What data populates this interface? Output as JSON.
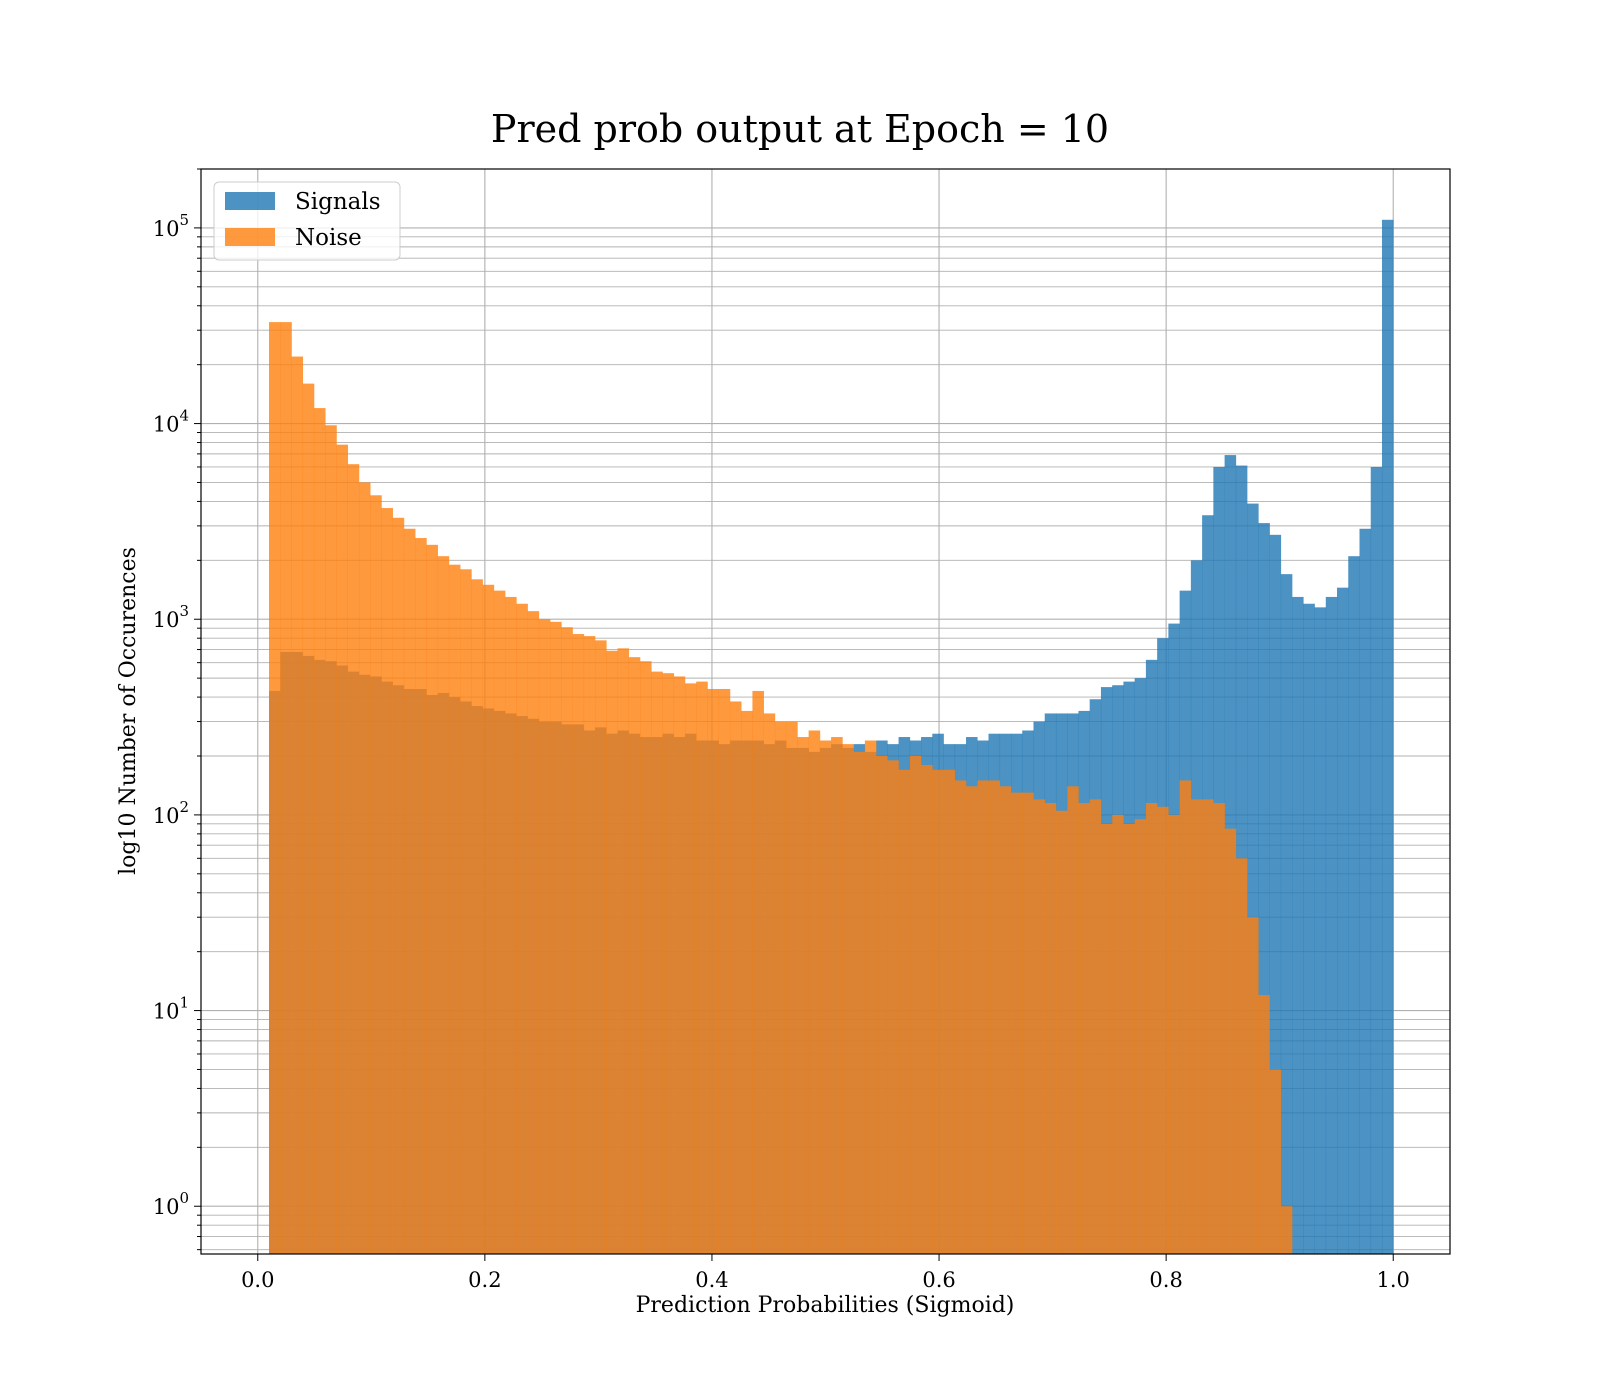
{
  "chart_data": {
    "type": "bar",
    "title": "Pred prob output at Epoch = 10",
    "xlabel": "Prediction Probabilities (Sigmoid)",
    "ylabel": "log10 Number of Occurences",
    "xlim": [
      -0.05,
      1.05
    ],
    "ylim": [
      0.57,
      200000
    ],
    "yscale": "log",
    "grid": true,
    "legend_position": "top-left",
    "x_ticks": [
      "0.0",
      "0.2",
      "0.4",
      "0.6",
      "0.8",
      "1.0"
    ],
    "x_tick_values": [
      0.0,
      0.2,
      0.4,
      0.6,
      0.8,
      1.0
    ],
    "y_ticks": [
      {
        "base": "10",
        "exp": "0",
        "value": 1
      },
      {
        "base": "10",
        "exp": "1",
        "value": 10
      },
      {
        "base": "10",
        "exp": "2",
        "value": 100
      },
      {
        "base": "10",
        "exp": "3",
        "value": 1000
      },
      {
        "base": "10",
        "exp": "4",
        "value": 10000
      },
      {
        "base": "10",
        "exp": "5",
        "value": 100000
      }
    ],
    "series": [
      {
        "name": "Signals",
        "color": "#1f77b4",
        "bin_start": 0.0,
        "bin_end": 1.0,
        "values": [
          0,
          430,
          680,
          680,
          650,
          620,
          610,
          580,
          540,
          520,
          510,
          480,
          460,
          440,
          440,
          410,
          420,
          400,
          380,
          360,
          350,
          340,
          330,
          320,
          310,
          300,
          300,
          290,
          290,
          270,
          280,
          260,
          270,
          260,
          250,
          250,
          260,
          250,
          260,
          240,
          240,
          230,
          240,
          240,
          240,
          230,
          240,
          220,
          220,
          210,
          220,
          230,
          220,
          230,
          210,
          240,
          230,
          250,
          240,
          250,
          260,
          230,
          230,
          250,
          240,
          260,
          260,
          260,
          270,
          300,
          330,
          330,
          330,
          340,
          390,
          450,
          460,
          480,
          500,
          620,
          800,
          950,
          1400,
          2000,
          3400,
          6000,
          6900,
          6100,
          3900,
          3100,
          2700,
          1700,
          1300,
          1200,
          1150,
          1300,
          1450,
          2100,
          2900,
          6000,
          110000
        ]
      },
      {
        "name": "Noise",
        "color": "#ff7f0e",
        "bin_start": 0.0,
        "bin_end": 1.0,
        "values": [
          0,
          33000,
          33000,
          22000,
          16000,
          12000,
          9800,
          7800,
          6200,
          5000,
          4300,
          3700,
          3300,
          2900,
          2600,
          2400,
          2100,
          1900,
          1800,
          1600,
          1500,
          1400,
          1300,
          1200,
          1100,
          1000,
          970,
          910,
          840,
          820,
          780,
          690,
          710,
          640,
          610,
          540,
          530,
          510,
          470,
          480,
          440,
          440,
          380,
          340,
          430,
          330,
          300,
          300,
          250,
          270,
          240,
          250,
          230,
          210,
          240,
          200,
          190,
          170,
          200,
          180,
          170,
          170,
          150,
          140,
          150,
          150,
          140,
          130,
          130,
          120,
          115,
          105,
          140,
          115,
          120,
          90,
          100,
          90,
          95,
          115,
          110,
          100,
          150,
          120,
          120,
          115,
          85,
          60,
          30,
          12,
          5,
          1,
          0,
          0,
          0,
          0,
          0,
          0,
          0,
          0,
          0
        ]
      }
    ]
  }
}
